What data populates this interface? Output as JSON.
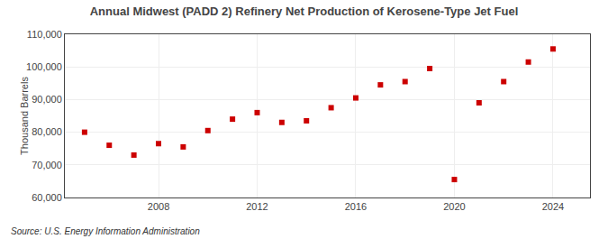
{
  "chart_data": {
    "type": "scatter",
    "title": "Annual Midwest (PADD 2) Refinery Net Production of Kerosene-Type Jet Fuel",
    "ylabel": "Thousand Barrels",
    "annotations": [
      "Source: U.S. Energy Information Administration"
    ],
    "x": [
      2005,
      2006,
      2007,
      2008,
      2009,
      2010,
      2011,
      2012,
      2013,
      2014,
      2015,
      2016,
      2017,
      2018,
      2019,
      2020,
      2021,
      2022,
      2023,
      2024
    ],
    "values": [
      80000,
      76000,
      73000,
      76500,
      75500,
      80500,
      84000,
      86000,
      83000,
      83500,
      87500,
      90500,
      94500,
      95500,
      99500,
      65500,
      89000,
      95500,
      101500,
      105500
    ],
    "color": "#cc0000",
    "marker": "square",
    "xlim": [
      2004.2,
      2025.5
    ],
    "xticks": [
      2008,
      2012,
      2016,
      2020,
      2024
    ],
    "ylim": [
      60000,
      110000
    ],
    "yticks": [
      {
        "value": 60000,
        "label": "60,000"
      },
      {
        "value": 70000,
        "label": "70,000"
      },
      {
        "value": 80000,
        "label": "80,000"
      },
      {
        "value": 90000,
        "label": "90,000"
      },
      {
        "value": 100000,
        "label": "100,000"
      },
      {
        "value": 110000,
        "label": "110,000"
      }
    ],
    "grid": true
  }
}
